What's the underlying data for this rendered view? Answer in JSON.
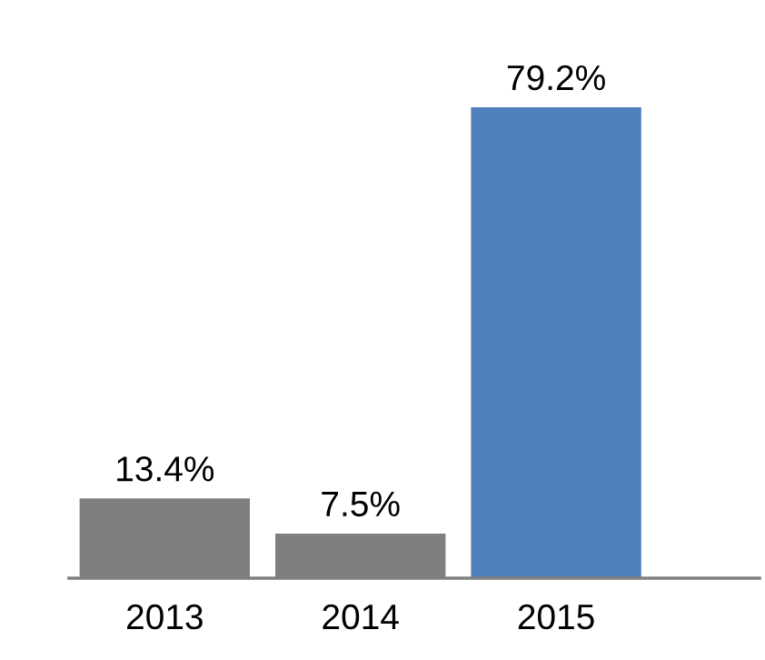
{
  "chart_data": {
    "type": "bar",
    "categories": [
      "2013",
      "2014",
      "2015"
    ],
    "values": [
      13.4,
      7.5,
      79.2
    ],
    "colors": [
      "#7f7f7f",
      "#7f7f7f",
      "#4f81bd"
    ],
    "value_labels": [
      "13.4%",
      "7.5%",
      "79.2%"
    ],
    "grid": false,
    "legend": false
  }
}
